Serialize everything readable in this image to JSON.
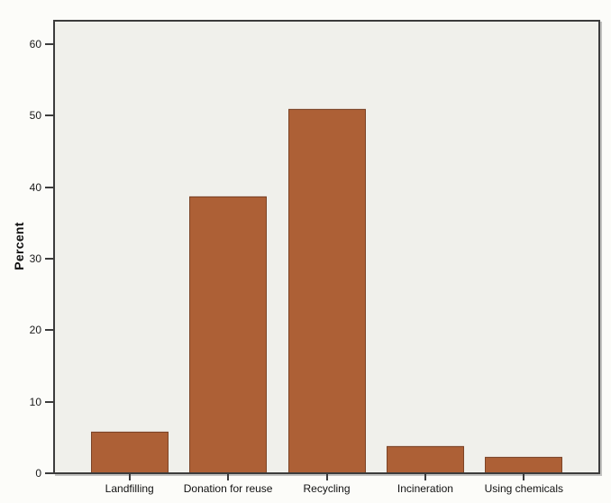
{
  "chart_data": {
    "type": "bar",
    "categories": [
      "Landfilling",
      "Donation for reuse",
      "Recycling",
      "Incineration",
      "Using chemicals"
    ],
    "values": [
      5.7,
      38.6,
      50.8,
      3.7,
      2.1
    ],
    "title": "",
    "xlabel": "",
    "ylabel": "Percent",
    "ylim": [
      0,
      60
    ],
    "y_ticks": [
      0,
      10,
      20,
      30,
      40,
      50,
      60
    ],
    "grid": false,
    "legend": null,
    "colors": {
      "bar_fill": "#ad6036",
      "bar_border": "#7c4426",
      "plot_background": "#f0f0eb",
      "figure_background": "#fcfcf9",
      "axis": "#3c3c3c",
      "text": "#111111"
    }
  }
}
